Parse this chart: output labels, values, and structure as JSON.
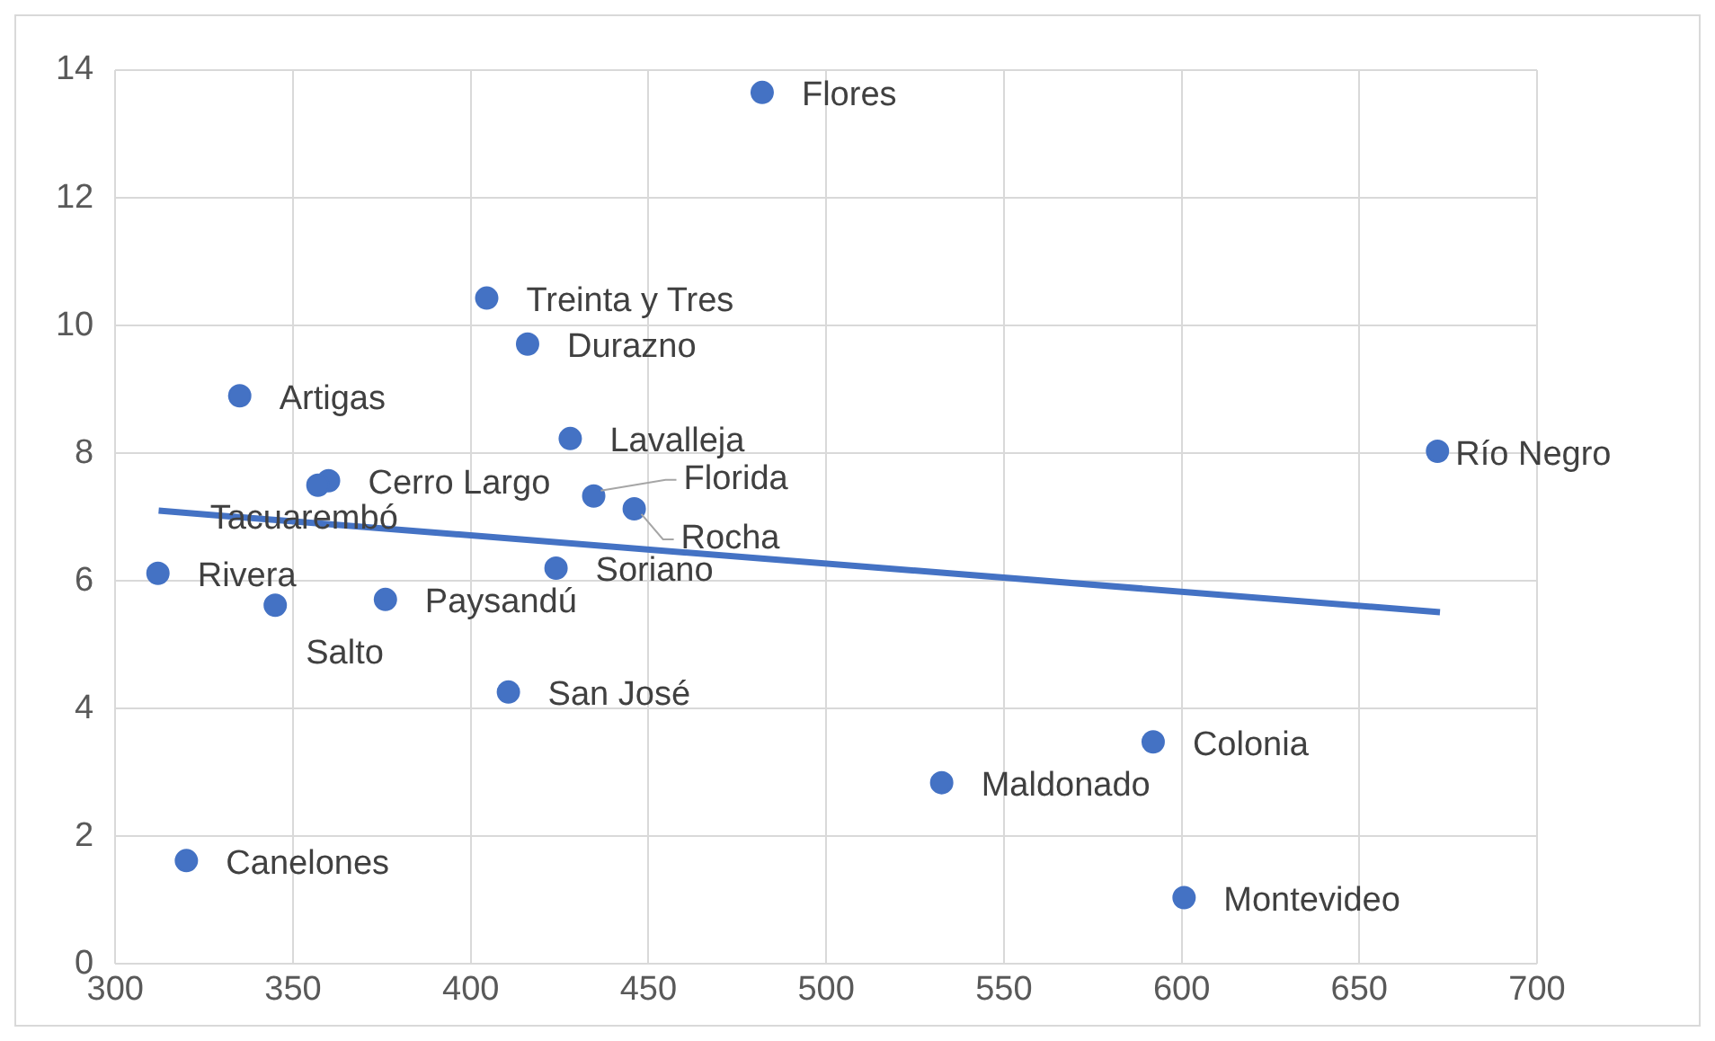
{
  "chart_data": {
    "type": "scatter",
    "series": [
      {
        "type": "scatter",
        "marker": "circle",
        "color": "#4472c4",
        "x": [
          482,
          404.5,
          416,
          335,
          428,
          672,
          360,
          357,
          434.6,
          446,
          424,
          312,
          345,
          376,
          410.6,
          592,
          532.5,
          320,
          600.7
        ],
        "values": [
          13.65,
          10.43,
          9.71,
          8.9,
          8.23,
          8.03,
          7.57,
          7.5,
          7.33,
          7.13,
          6.2,
          6.12,
          5.62,
          5.71,
          4.26,
          3.48,
          2.84,
          1.62,
          1.04
        ]
      },
      {
        "type": "line",
        "marker": "none",
        "color": "#4472c4",
        "x": [
          312.2,
          672.7
        ],
        "values": [
          7.1,
          5.51
        ]
      }
    ],
    "annotations": [
      {
        "text": "Flores",
        "x": 482,
        "y": 13.65
      },
      {
        "text": "Treinta y Tres",
        "x": 404.5,
        "y": 10.43
      },
      {
        "text": "Durazno",
        "x": 416,
        "y": 9.71
      },
      {
        "text": "Artigas",
        "x": 335,
        "y": 8.9
      },
      {
        "text": "Lavalleja",
        "x": 428,
        "y": 8.23
      },
      {
        "text": "Río Negro",
        "x": 672,
        "y": 8.03
      },
      {
        "text": "Cerro Largo",
        "x": 360,
        "y": 7.57
      },
      {
        "text": "Tacuarembó",
        "x": 357,
        "y": 7.5
      },
      {
        "text": "Florida",
        "x": 434.6,
        "y": 7.33
      },
      {
        "text": "Rocha",
        "x": 446,
        "y": 7.13
      },
      {
        "text": "Soriano",
        "x": 424,
        "y": 6.2
      },
      {
        "text": "Rivera",
        "x": 312,
        "y": 6.12
      },
      {
        "text": "Salto",
        "x": 345,
        "y": 5.62
      },
      {
        "text": "Paysandú",
        "x": 376,
        "y": 5.71
      },
      {
        "text": "San José",
        "x": 410.6,
        "y": 4.26
      },
      {
        "text": "Colonia",
        "x": 592,
        "y": 3.48
      },
      {
        "text": "Maldonado",
        "x": 532.5,
        "y": 2.84
      },
      {
        "text": "Canelones",
        "x": 320,
        "y": 1.62
      },
      {
        "text": "Montevideo",
        "x": 600.7,
        "y": 1.04
      }
    ],
    "xlim": [
      300,
      700
    ],
    "xticks": [
      300,
      350,
      400,
      450,
      500,
      550,
      600,
      650,
      700
    ],
    "ylim": [
      0,
      14
    ],
    "yticks": [
      0,
      2,
      4,
      6,
      8,
      10,
      12,
      14
    ],
    "grid": true,
    "legend": false
  }
}
